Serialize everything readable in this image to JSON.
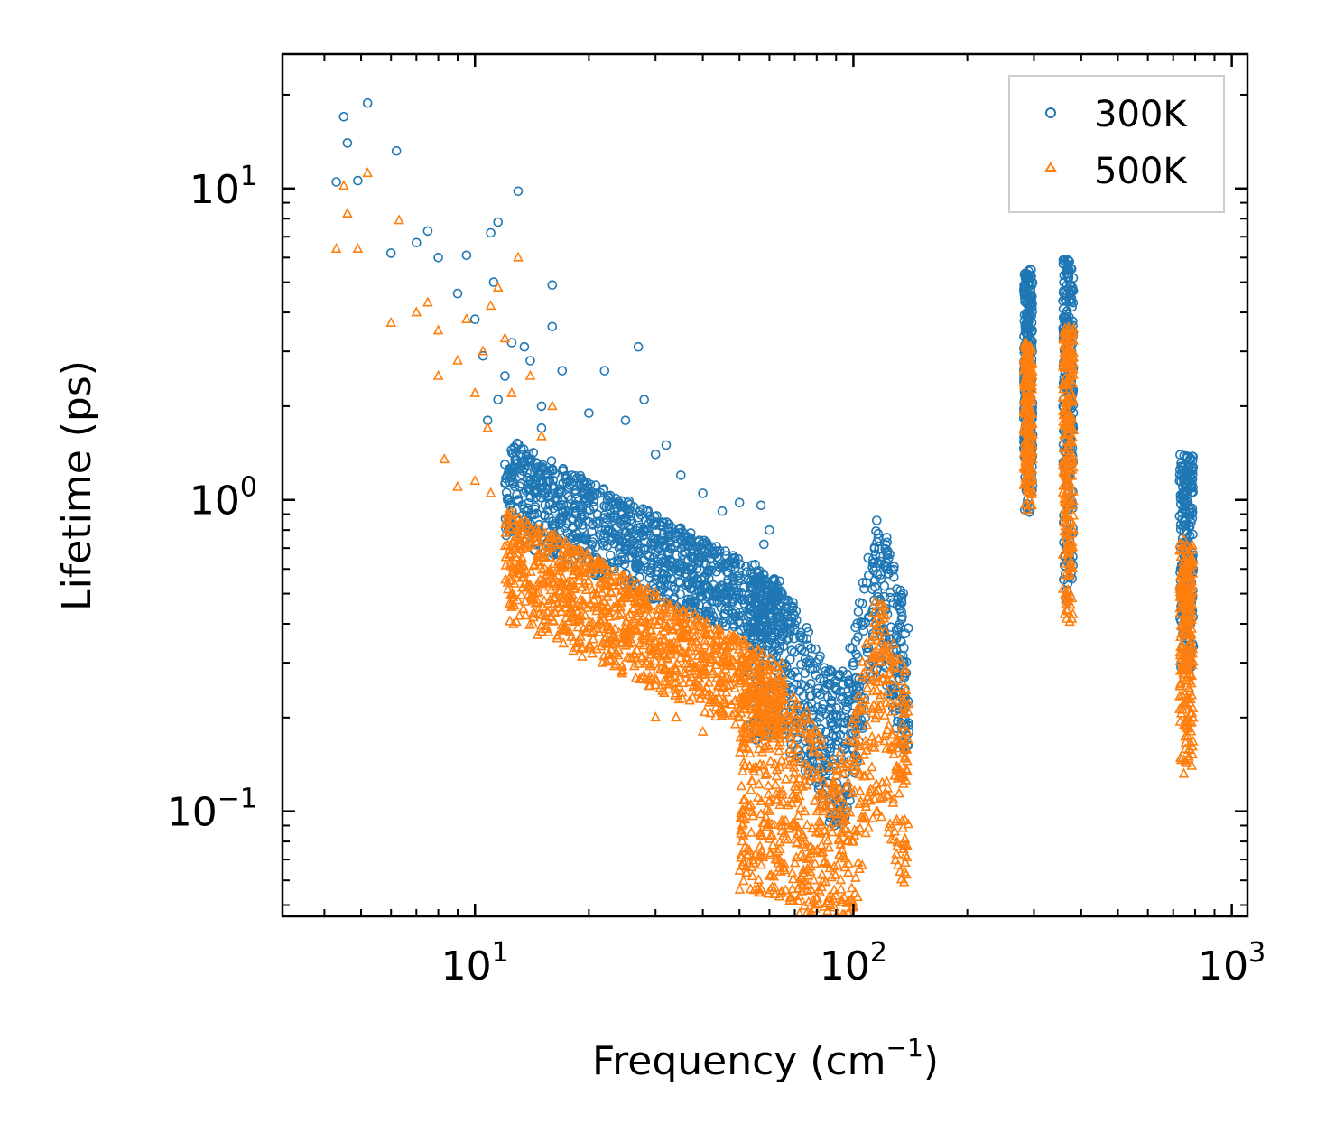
{
  "chart_data": {
    "type": "scatter",
    "title": "",
    "xlabel": "Frequency (cm",
    "xlabel_superscript": "−1",
    "xlabel_suffix": ")",
    "ylabel": "Lifetime (ps)",
    "xscale": "log",
    "yscale": "log",
    "xlim": [
      3.1,
      1100
    ],
    "ylim": [
      0.046,
      27
    ],
    "x_ticks": [
      {
        "value": 10,
        "base": "10",
        "exp": "1"
      },
      {
        "value": 100,
        "base": "10",
        "exp": "2"
      },
      {
        "value": 1000,
        "base": "10",
        "exp": "3"
      }
    ],
    "y_ticks": [
      {
        "value": 10,
        "base": "10",
        "exp": "1"
      },
      {
        "value": 1,
        "base": "10",
        "exp": "0"
      },
      {
        "value": 0.1,
        "base": "10",
        "exp": "−1"
      }
    ],
    "legend_position": "top-right",
    "series": [
      {
        "name": "300K",
        "marker": "circle",
        "color": "#1f77b4",
        "points": [
          [
            4.3,
            10.5
          ],
          [
            4.5,
            17
          ],
          [
            4.6,
            14
          ],
          [
            4.9,
            10.6
          ],
          [
            5.2,
            18.8
          ],
          [
            6,
            6.2
          ],
          [
            6.2,
            13.2
          ],
          [
            7,
            6.7
          ],
          [
            7.5,
            7.3
          ],
          [
            8,
            6
          ],
          [
            9,
            4.6
          ],
          [
            9.5,
            6.1
          ],
          [
            10,
            3.8
          ],
          [
            10.5,
            2.9
          ],
          [
            11,
            7.2
          ],
          [
            11.5,
            7.8
          ],
          [
            11.2,
            5
          ],
          [
            12.5,
            3.2
          ],
          [
            13,
            9.8
          ],
          [
            12,
            2.5
          ],
          [
            13.5,
            3.1
          ],
          [
            14,
            2.8
          ],
          [
            15,
            2
          ],
          [
            16,
            4.9
          ],
          [
            16,
            3.6
          ],
          [
            17,
            2.6
          ],
          [
            20,
            1.9
          ],
          [
            22,
            2.6
          ],
          [
            27,
            3.1
          ],
          [
            28,
            2.1
          ],
          [
            32,
            1.5
          ],
          [
            40,
            1.05
          ],
          [
            45,
            0.92
          ],
          [
            50,
            0.98
          ],
          [
            57,
            0.96
          ],
          [
            60,
            0.8
          ],
          [
            58,
            0.72
          ],
          [
            12,
            1.3
          ],
          [
            13,
            1.0
          ],
          [
            14,
            1.15
          ],
          [
            10.8,
            1.8
          ],
          [
            11.5,
            2.1
          ],
          [
            15,
            1.7
          ],
          [
            18,
            1.2
          ],
          [
            25,
            1.8
          ],
          [
            30,
            1.4
          ],
          [
            35,
            1.2
          ],
          [
            55,
            0.62
          ],
          [
            62,
            0.55
          ],
          [
            70,
            0.28
          ],
          [
            80,
            0.24
          ],
          [
            90,
            0.2
          ],
          [
            100,
            0.3
          ],
          [
            110,
            0.42
          ],
          [
            120,
            0.38
          ],
          [
            130,
            0.33
          ],
          [
            135,
            0.22
          ],
          [
            75,
            0.3
          ],
          [
            85,
            0.25
          ],
          [
            95,
            0.2
          ]
        ],
        "clusters": [
          {
            "x": [
              12,
              65
            ],
            "y_top": [
              1.6,
              0.55
            ],
            "y_bottom": [
              0.75,
              0.32
            ],
            "n": 1100
          },
          {
            "x": [
              52,
              140
            ],
            "y_mid": [
              0.3,
              0.26
            ],
            "spread": 0.25,
            "n": 700
          },
          {
            "x": [
              280,
              300
            ],
            "y": [
              0.9,
              5.5
            ],
            "n": 260
          },
          {
            "x": [
              355,
              385
            ],
            "y": [
              0.45,
              5.9
            ],
            "n": 260
          },
          {
            "x": [
              720,
              800
            ],
            "y": [
              0.28,
              1.4
            ],
            "n": 240
          }
        ]
      },
      {
        "name": "500K",
        "marker": "triangle",
        "color": "#ff7f0e",
        "points": [
          [
            4.3,
            6.4
          ],
          [
            4.5,
            10.2
          ],
          [
            4.6,
            8.3
          ],
          [
            4.9,
            6.4
          ],
          [
            5.2,
            11.2
          ],
          [
            6,
            3.7
          ],
          [
            6.3,
            7.9
          ],
          [
            7,
            4
          ],
          [
            7.5,
            4.3
          ],
          [
            8,
            3.5
          ],
          [
            8,
            2.5
          ],
          [
            8.3,
            1.35
          ],
          [
            9,
            2.8
          ],
          [
            9.5,
            3.8
          ],
          [
            10,
            2.2
          ],
          [
            10.5,
            3
          ],
          [
            10.8,
            1.7
          ],
          [
            11,
            4.2
          ],
          [
            11.5,
            4.8
          ],
          [
            12,
            3.3
          ],
          [
            12.5,
            2.2
          ],
          [
            13,
            6
          ],
          [
            13,
            0.75
          ],
          [
            14,
            2.5
          ],
          [
            15,
            1.6
          ],
          [
            16,
            2
          ],
          [
            9,
            1.1
          ],
          [
            10,
            1.15
          ],
          [
            11,
            1.05
          ],
          [
            30,
            0.2
          ],
          [
            34,
            0.2
          ],
          [
            40,
            0.18
          ],
          [
            45,
            0.3
          ],
          [
            50,
            0.28
          ],
          [
            95,
            0.066
          ],
          [
            115,
            0.27
          ],
          [
            135,
            0.13
          ],
          [
            60,
            0.1
          ],
          [
            70,
            0.12
          ],
          [
            100,
            0.08
          ]
        ],
        "clusters": [
          {
            "x": [
              12,
              65
            ],
            "y_top": [
              0.95,
              0.3
            ],
            "y_bottom": [
              0.4,
              0.16
            ],
            "n": 1100
          },
          {
            "x": [
              50,
              140
            ],
            "y_mid": [
              0.12,
              0.12
            ],
            "spread": 0.35,
            "n": 800
          },
          {
            "x": [
              280,
              300
            ],
            "y": [
              0.92,
              3.2
            ],
            "n": 220
          },
          {
            "x": [
              355,
              385
            ],
            "y": [
              0.4,
              3.6
            ],
            "n": 240
          },
          {
            "x": [
              720,
              800
            ],
            "y": [
              0.13,
              0.75
            ],
            "n": 220
          }
        ]
      }
    ]
  }
}
